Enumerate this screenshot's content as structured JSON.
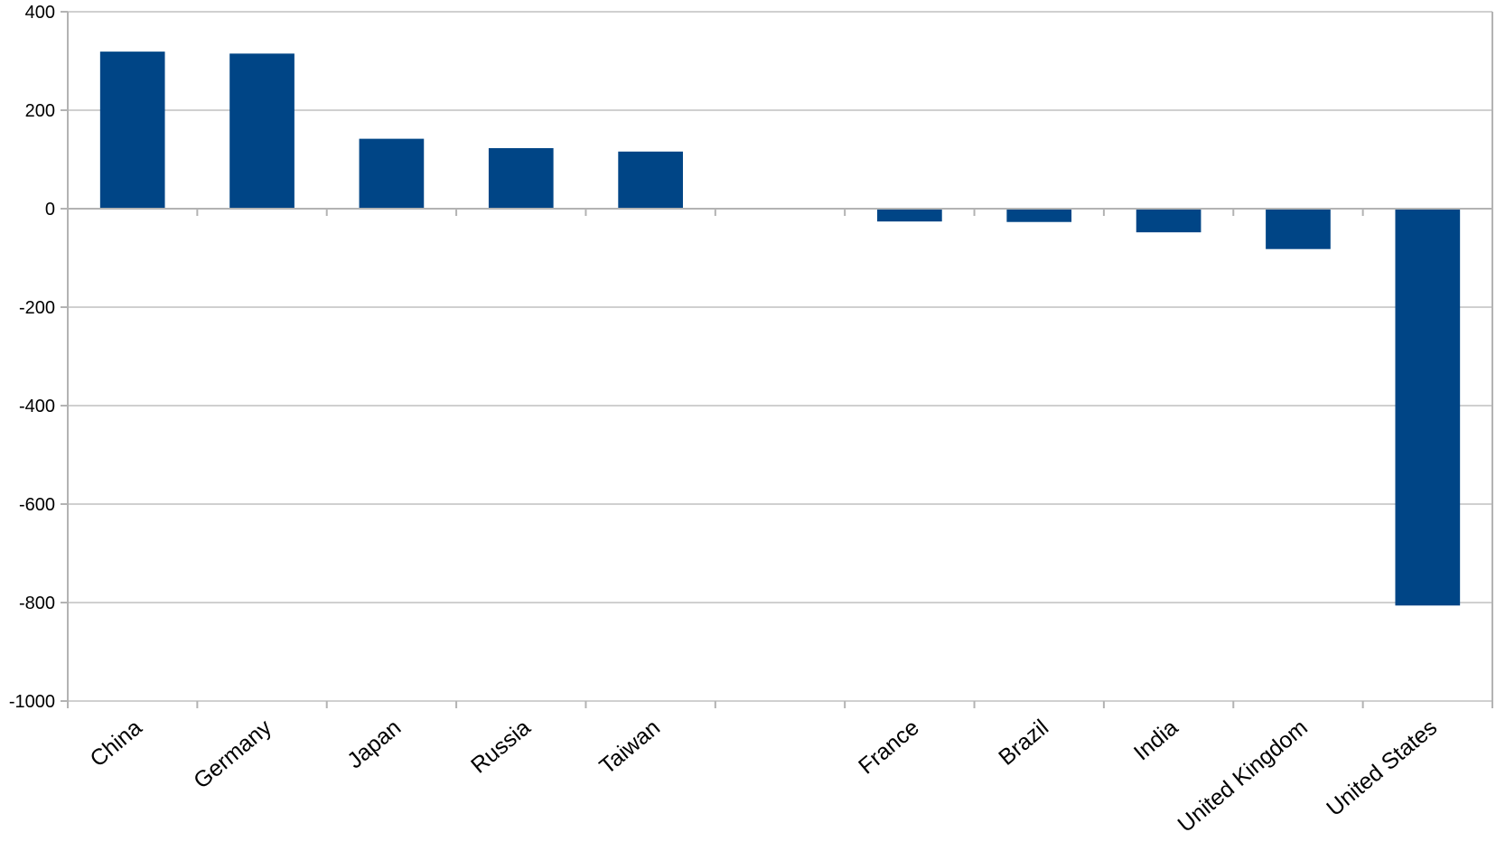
{
  "chart_data": {
    "type": "bar",
    "title": "",
    "xlabel": "",
    "ylabel": "",
    "categories": [
      "China",
      "Germany",
      "Japan",
      "Russia",
      "Taiwan",
      "",
      "France",
      "Brazil",
      "India",
      "United Kingdom",
      "United States"
    ],
    "values": [
      319,
      315,
      142,
      123,
      116,
      null,
      -26,
      -27,
      -48,
      -82,
      -806
    ],
    "ylim": [
      -1000,
      400
    ],
    "yticks": [
      400,
      200,
      0,
      -200,
      -400,
      -600,
      -800,
      -1000
    ],
    "ytick_labels": [
      "400",
      "200",
      "0",
      "-200",
      "-400",
      "-600",
      "-800",
      "-1000"
    ],
    "bar_color": "#004586",
    "grid": true,
    "legend": "none"
  }
}
